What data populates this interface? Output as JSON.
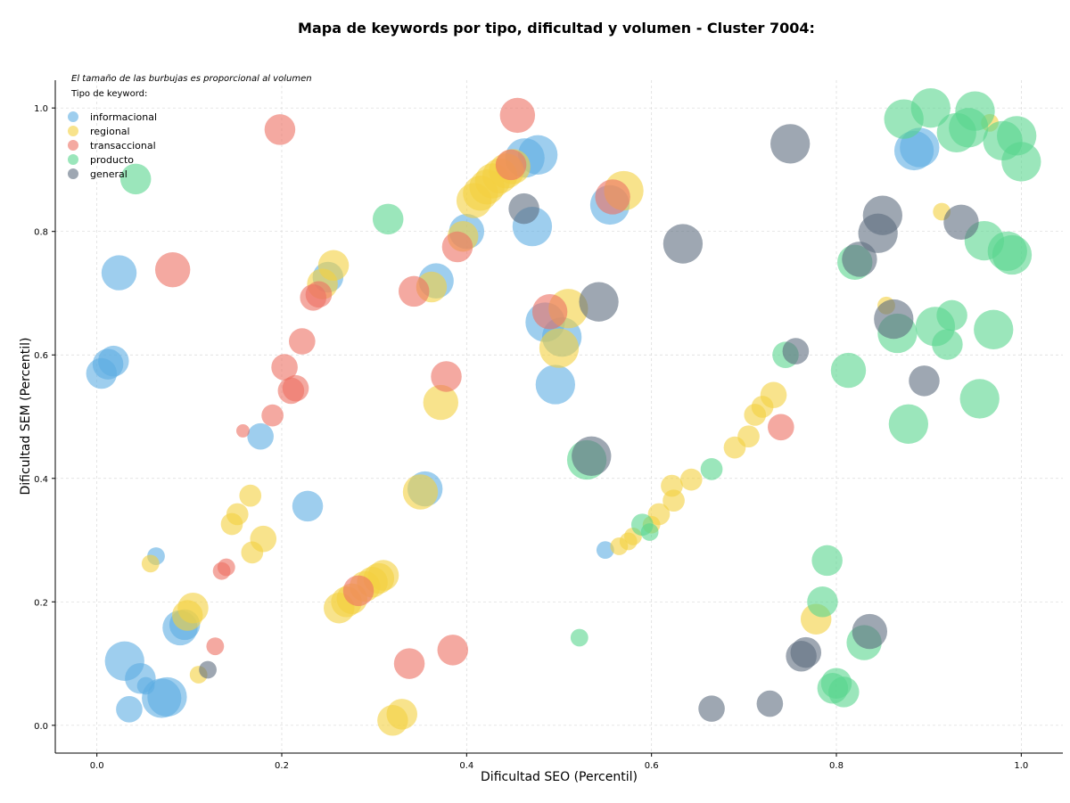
{
  "chart_data": {
    "type": "scatter",
    "title": "Mapa de keywords por tipo, dificultad y volumen - Cluster 7004:",
    "xlabel": "Dificultad SEO (Percentil)",
    "ylabel": "Dificultad SEM (Percentil)",
    "xlim": [
      -0.045,
      1.045
    ],
    "ylim": [
      -0.045,
      1.045
    ],
    "xticks": [
      "0.0",
      "0.2",
      "0.4",
      "0.6",
      "0.8",
      "1.0"
    ],
    "yticks": [
      "0.0",
      "0.2",
      "0.4",
      "0.6",
      "0.8",
      "1.0"
    ],
    "grid": true,
    "note": "El tamaño de las burbujas es proporcional al volumen",
    "legend_title": "Tipo de keyword:",
    "legend_position": "top-left",
    "series": [
      {
        "name": "informacional",
        "color": "#5dade2",
        "points": [
          {
            "x": 0.005,
            "y": 0.57,
            "s": 5
          },
          {
            "x": 0.012,
            "y": 0.585,
            "s": 5
          },
          {
            "x": 0.018,
            "y": 0.59,
            "s": 5
          },
          {
            "x": 0.024,
            "y": 0.733,
            "s": 6
          },
          {
            "x": 0.03,
            "y": 0.104,
            "s": 7
          },
          {
            "x": 0.035,
            "y": 0.026,
            "s": 4
          },
          {
            "x": 0.047,
            "y": 0.076,
            "s": 5
          },
          {
            "x": 0.053,
            "y": 0.064,
            "s": 2
          },
          {
            "x": 0.064,
            "y": 0.274,
            "s": 2
          },
          {
            "x": 0.07,
            "y": 0.044,
            "s": 7
          },
          {
            "x": 0.076,
            "y": 0.046,
            "s": 7
          },
          {
            "x": 0.09,
            "y": 0.158,
            "s": 6
          },
          {
            "x": 0.095,
            "y": 0.163,
            "s": 5
          },
          {
            "x": 0.177,
            "y": 0.468,
            "s": 4
          },
          {
            "x": 0.228,
            "y": 0.355,
            "s": 5
          },
          {
            "x": 0.25,
            "y": 0.726,
            "s": 5
          },
          {
            "x": 0.355,
            "y": 0.383,
            "s": 6
          },
          {
            "x": 0.367,
            "y": 0.72,
            "s": 6
          },
          {
            "x": 0.4,
            "y": 0.8,
            "s": 6
          },
          {
            "x": 0.463,
            "y": 0.919,
            "s": 7
          },
          {
            "x": 0.471,
            "y": 0.808,
            "s": 7
          },
          {
            "x": 0.477,
            "y": 0.924,
            "s": 7
          },
          {
            "x": 0.485,
            "y": 0.653,
            "s": 7
          },
          {
            "x": 0.496,
            "y": 0.552,
            "s": 7
          },
          {
            "x": 0.503,
            "y": 0.629,
            "s": 7
          },
          {
            "x": 0.55,
            "y": 0.284,
            "s": 2
          },
          {
            "x": 0.555,
            "y": 0.843,
            "s": 7
          },
          {
            "x": 0.884,
            "y": 0.931,
            "s": 7
          },
          {
            "x": 0.89,
            "y": 0.936,
            "s": 7
          }
        ]
      },
      {
        "name": "regional",
        "color": "#f4d03f",
        "points": [
          {
            "x": 0.058,
            "y": 0.262,
            "s": 2
          },
          {
            "x": 0.098,
            "y": 0.178,
            "s": 5
          },
          {
            "x": 0.104,
            "y": 0.19,
            "s": 5
          },
          {
            "x": 0.11,
            "y": 0.082,
            "s": 2
          },
          {
            "x": 0.146,
            "y": 0.326,
            "s": 3
          },
          {
            "x": 0.152,
            "y": 0.342,
            "s": 3
          },
          {
            "x": 0.166,
            "y": 0.372,
            "s": 3
          },
          {
            "x": 0.168,
            "y": 0.28,
            "s": 3
          },
          {
            "x": 0.18,
            "y": 0.302,
            "s": 4
          },
          {
            "x": 0.244,
            "y": 0.715,
            "s": 5
          },
          {
            "x": 0.256,
            "y": 0.745,
            "s": 5
          },
          {
            "x": 0.262,
            "y": 0.19,
            "s": 5
          },
          {
            "x": 0.27,
            "y": 0.2,
            "s": 5
          },
          {
            "x": 0.276,
            "y": 0.205,
            "s": 5
          },
          {
            "x": 0.29,
            "y": 0.225,
            "s": 5
          },
          {
            "x": 0.298,
            "y": 0.232,
            "s": 5
          },
          {
            "x": 0.305,
            "y": 0.238,
            "s": 5
          },
          {
            "x": 0.31,
            "y": 0.243,
            "s": 5
          },
          {
            "x": 0.32,
            "y": 0.008,
            "s": 5
          },
          {
            "x": 0.33,
            "y": 0.018,
            "s": 5
          },
          {
            "x": 0.35,
            "y": 0.378,
            "s": 6
          },
          {
            "x": 0.362,
            "y": 0.71,
            "s": 5
          },
          {
            "x": 0.372,
            "y": 0.523,
            "s": 6
          },
          {
            "x": 0.396,
            "y": 0.792,
            "s": 5
          },
          {
            "x": 0.408,
            "y": 0.85,
            "s": 6
          },
          {
            "x": 0.415,
            "y": 0.862,
            "s": 6
          },
          {
            "x": 0.422,
            "y": 0.872,
            "s": 6
          },
          {
            "x": 0.428,
            "y": 0.882,
            "s": 6
          },
          {
            "x": 0.436,
            "y": 0.89,
            "s": 6
          },
          {
            "x": 0.443,
            "y": 0.898,
            "s": 6
          },
          {
            "x": 0.45,
            "y": 0.905,
            "s": 6
          },
          {
            "x": 0.5,
            "y": 0.611,
            "s": 7
          },
          {
            "x": 0.51,
            "y": 0.675,
            "s": 7
          },
          {
            "x": 0.565,
            "y": 0.29,
            "s": 2
          },
          {
            "x": 0.57,
            "y": 0.866,
            "s": 7
          },
          {
            "x": 0.575,
            "y": 0.298,
            "s": 2
          },
          {
            "x": 0.58,
            "y": 0.306,
            "s": 2
          },
          {
            "x": 0.6,
            "y": 0.325,
            "s": 2
          },
          {
            "x": 0.608,
            "y": 0.342,
            "s": 3
          },
          {
            "x": 0.622,
            "y": 0.388,
            "s": 3
          },
          {
            "x": 0.624,
            "y": 0.364,
            "s": 3
          },
          {
            "x": 0.643,
            "y": 0.398,
            "s": 3
          },
          {
            "x": 0.69,
            "y": 0.45,
            "s": 3
          },
          {
            "x": 0.705,
            "y": 0.468,
            "s": 3
          },
          {
            "x": 0.712,
            "y": 0.503,
            "s": 3
          },
          {
            "x": 0.72,
            "y": 0.516,
            "s": 3
          },
          {
            "x": 0.732,
            "y": 0.535,
            "s": 4
          },
          {
            "x": 0.778,
            "y": 0.172,
            "s": 5
          },
          {
            "x": 0.854,
            "y": 0.68,
            "s": 2
          },
          {
            "x": 0.914,
            "y": 0.832,
            "s": 2
          },
          {
            "x": 0.966,
            "y": 0.976,
            "s": 2
          }
        ]
      },
      {
        "name": "transaccional",
        "color": "#ec7063",
        "points": [
          {
            "x": 0.082,
            "y": 0.738,
            "s": 6
          },
          {
            "x": 0.128,
            "y": 0.128,
            "s": 2
          },
          {
            "x": 0.135,
            "y": 0.25,
            "s": 2
          },
          {
            "x": 0.14,
            "y": 0.256,
            "s": 2
          },
          {
            "x": 0.158,
            "y": 0.477,
            "s": 1
          },
          {
            "x": 0.19,
            "y": 0.502,
            "s": 3
          },
          {
            "x": 0.198,
            "y": 0.965,
            "s": 5
          },
          {
            "x": 0.203,
            "y": 0.58,
            "s": 4
          },
          {
            "x": 0.21,
            "y": 0.542,
            "s": 4
          },
          {
            "x": 0.215,
            "y": 0.546,
            "s": 4
          },
          {
            "x": 0.222,
            "y": 0.622,
            "s": 4
          },
          {
            "x": 0.234,
            "y": 0.693,
            "s": 4
          },
          {
            "x": 0.24,
            "y": 0.698,
            "s": 4
          },
          {
            "x": 0.283,
            "y": 0.218,
            "s": 5
          },
          {
            "x": 0.338,
            "y": 0.1,
            "s": 5
          },
          {
            "x": 0.343,
            "y": 0.703,
            "s": 5
          },
          {
            "x": 0.378,
            "y": 0.565,
            "s": 5
          },
          {
            "x": 0.385,
            "y": 0.122,
            "s": 5
          },
          {
            "x": 0.39,
            "y": 0.775,
            "s": 5
          },
          {
            "x": 0.448,
            "y": 0.908,
            "s": 5
          },
          {
            "x": 0.455,
            "y": 0.988,
            "s": 6
          },
          {
            "x": 0.49,
            "y": 0.67,
            "s": 6
          },
          {
            "x": 0.558,
            "y": 0.856,
            "s": 6
          },
          {
            "x": 0.74,
            "y": 0.483,
            "s": 4
          }
        ]
      },
      {
        "name": "producto",
        "color": "#58d68d",
        "points": [
          {
            "x": 0.042,
            "y": 0.885,
            "s": 5
          },
          {
            "x": 0.315,
            "y": 0.82,
            "s": 5
          },
          {
            "x": 0.522,
            "y": 0.142,
            "s": 2
          },
          {
            "x": 0.53,
            "y": 0.43,
            "s": 7
          },
          {
            "x": 0.59,
            "y": 0.325,
            "s": 3
          },
          {
            "x": 0.598,
            "y": 0.313,
            "s": 2
          },
          {
            "x": 0.665,
            "y": 0.415,
            "s": 3
          },
          {
            "x": 0.745,
            "y": 0.6,
            "s": 4
          },
          {
            "x": 0.79,
            "y": 0.267,
            "s": 5
          },
          {
            "x": 0.785,
            "y": 0.2,
            "s": 5
          },
          {
            "x": 0.796,
            "y": 0.06,
            "s": 5
          },
          {
            "x": 0.8,
            "y": 0.068,
            "s": 5
          },
          {
            "x": 0.808,
            "y": 0.054,
            "s": 5
          },
          {
            "x": 0.813,
            "y": 0.575,
            "s": 6
          },
          {
            "x": 0.82,
            "y": 0.75,
            "s": 6
          },
          {
            "x": 0.83,
            "y": 0.134,
            "s": 6
          },
          {
            "x": 0.866,
            "y": 0.635,
            "s": 7
          },
          {
            "x": 0.873,
            "y": 0.982,
            "s": 7
          },
          {
            "x": 0.878,
            "y": 0.488,
            "s": 7
          },
          {
            "x": 0.902,
            "y": 1.0,
            "s": 7
          },
          {
            "x": 0.907,
            "y": 0.646,
            "s": 7
          },
          {
            "x": 0.92,
            "y": 0.617,
            "s": 5
          },
          {
            "x": 0.925,
            "y": 0.664,
            "s": 5
          },
          {
            "x": 0.93,
            "y": 0.96,
            "s": 7
          },
          {
            "x": 0.943,
            "y": 0.968,
            "s": 7
          },
          {
            "x": 0.95,
            "y": 0.995,
            "s": 7
          },
          {
            "x": 0.955,
            "y": 0.529,
            "s": 7
          },
          {
            "x": 0.96,
            "y": 0.785,
            "s": 7
          },
          {
            "x": 0.97,
            "y": 0.641,
            "s": 7
          },
          {
            "x": 0.98,
            "y": 0.947,
            "s": 7
          },
          {
            "x": 0.985,
            "y": 0.768,
            "s": 7
          },
          {
            "x": 0.99,
            "y": 0.762,
            "s": 7
          },
          {
            "x": 0.995,
            "y": 0.955,
            "s": 7
          },
          {
            "x": 1.0,
            "y": 0.913,
            "s": 7
          }
        ]
      },
      {
        "name": "general",
        "color": "#5d6d7e",
        "points": [
          {
            "x": 0.12,
            "y": 0.09,
            "s": 2
          },
          {
            "x": 0.462,
            "y": 0.837,
            "s": 5
          },
          {
            "x": 0.535,
            "y": 0.436,
            "s": 7
          },
          {
            "x": 0.543,
            "y": 0.686,
            "s": 7
          },
          {
            "x": 0.634,
            "y": 0.78,
            "s": 7
          },
          {
            "x": 0.665,
            "y": 0.027,
            "s": 4
          },
          {
            "x": 0.728,
            "y": 0.035,
            "s": 4
          },
          {
            "x": 0.75,
            "y": 0.942,
            "s": 7
          },
          {
            "x": 0.756,
            "y": 0.606,
            "s": 4
          },
          {
            "x": 0.762,
            "y": 0.112,
            "s": 5
          },
          {
            "x": 0.767,
            "y": 0.118,
            "s": 5
          },
          {
            "x": 0.825,
            "y": 0.755,
            "s": 6
          },
          {
            "x": 0.836,
            "y": 0.152,
            "s": 6
          },
          {
            "x": 0.845,
            "y": 0.797,
            "s": 7
          },
          {
            "x": 0.85,
            "y": 0.826,
            "s": 7
          },
          {
            "x": 0.862,
            "y": 0.658,
            "s": 7
          },
          {
            "x": 0.895,
            "y": 0.558,
            "s": 5
          },
          {
            "x": 0.935,
            "y": 0.815,
            "s": 6
          }
        ]
      }
    ]
  }
}
